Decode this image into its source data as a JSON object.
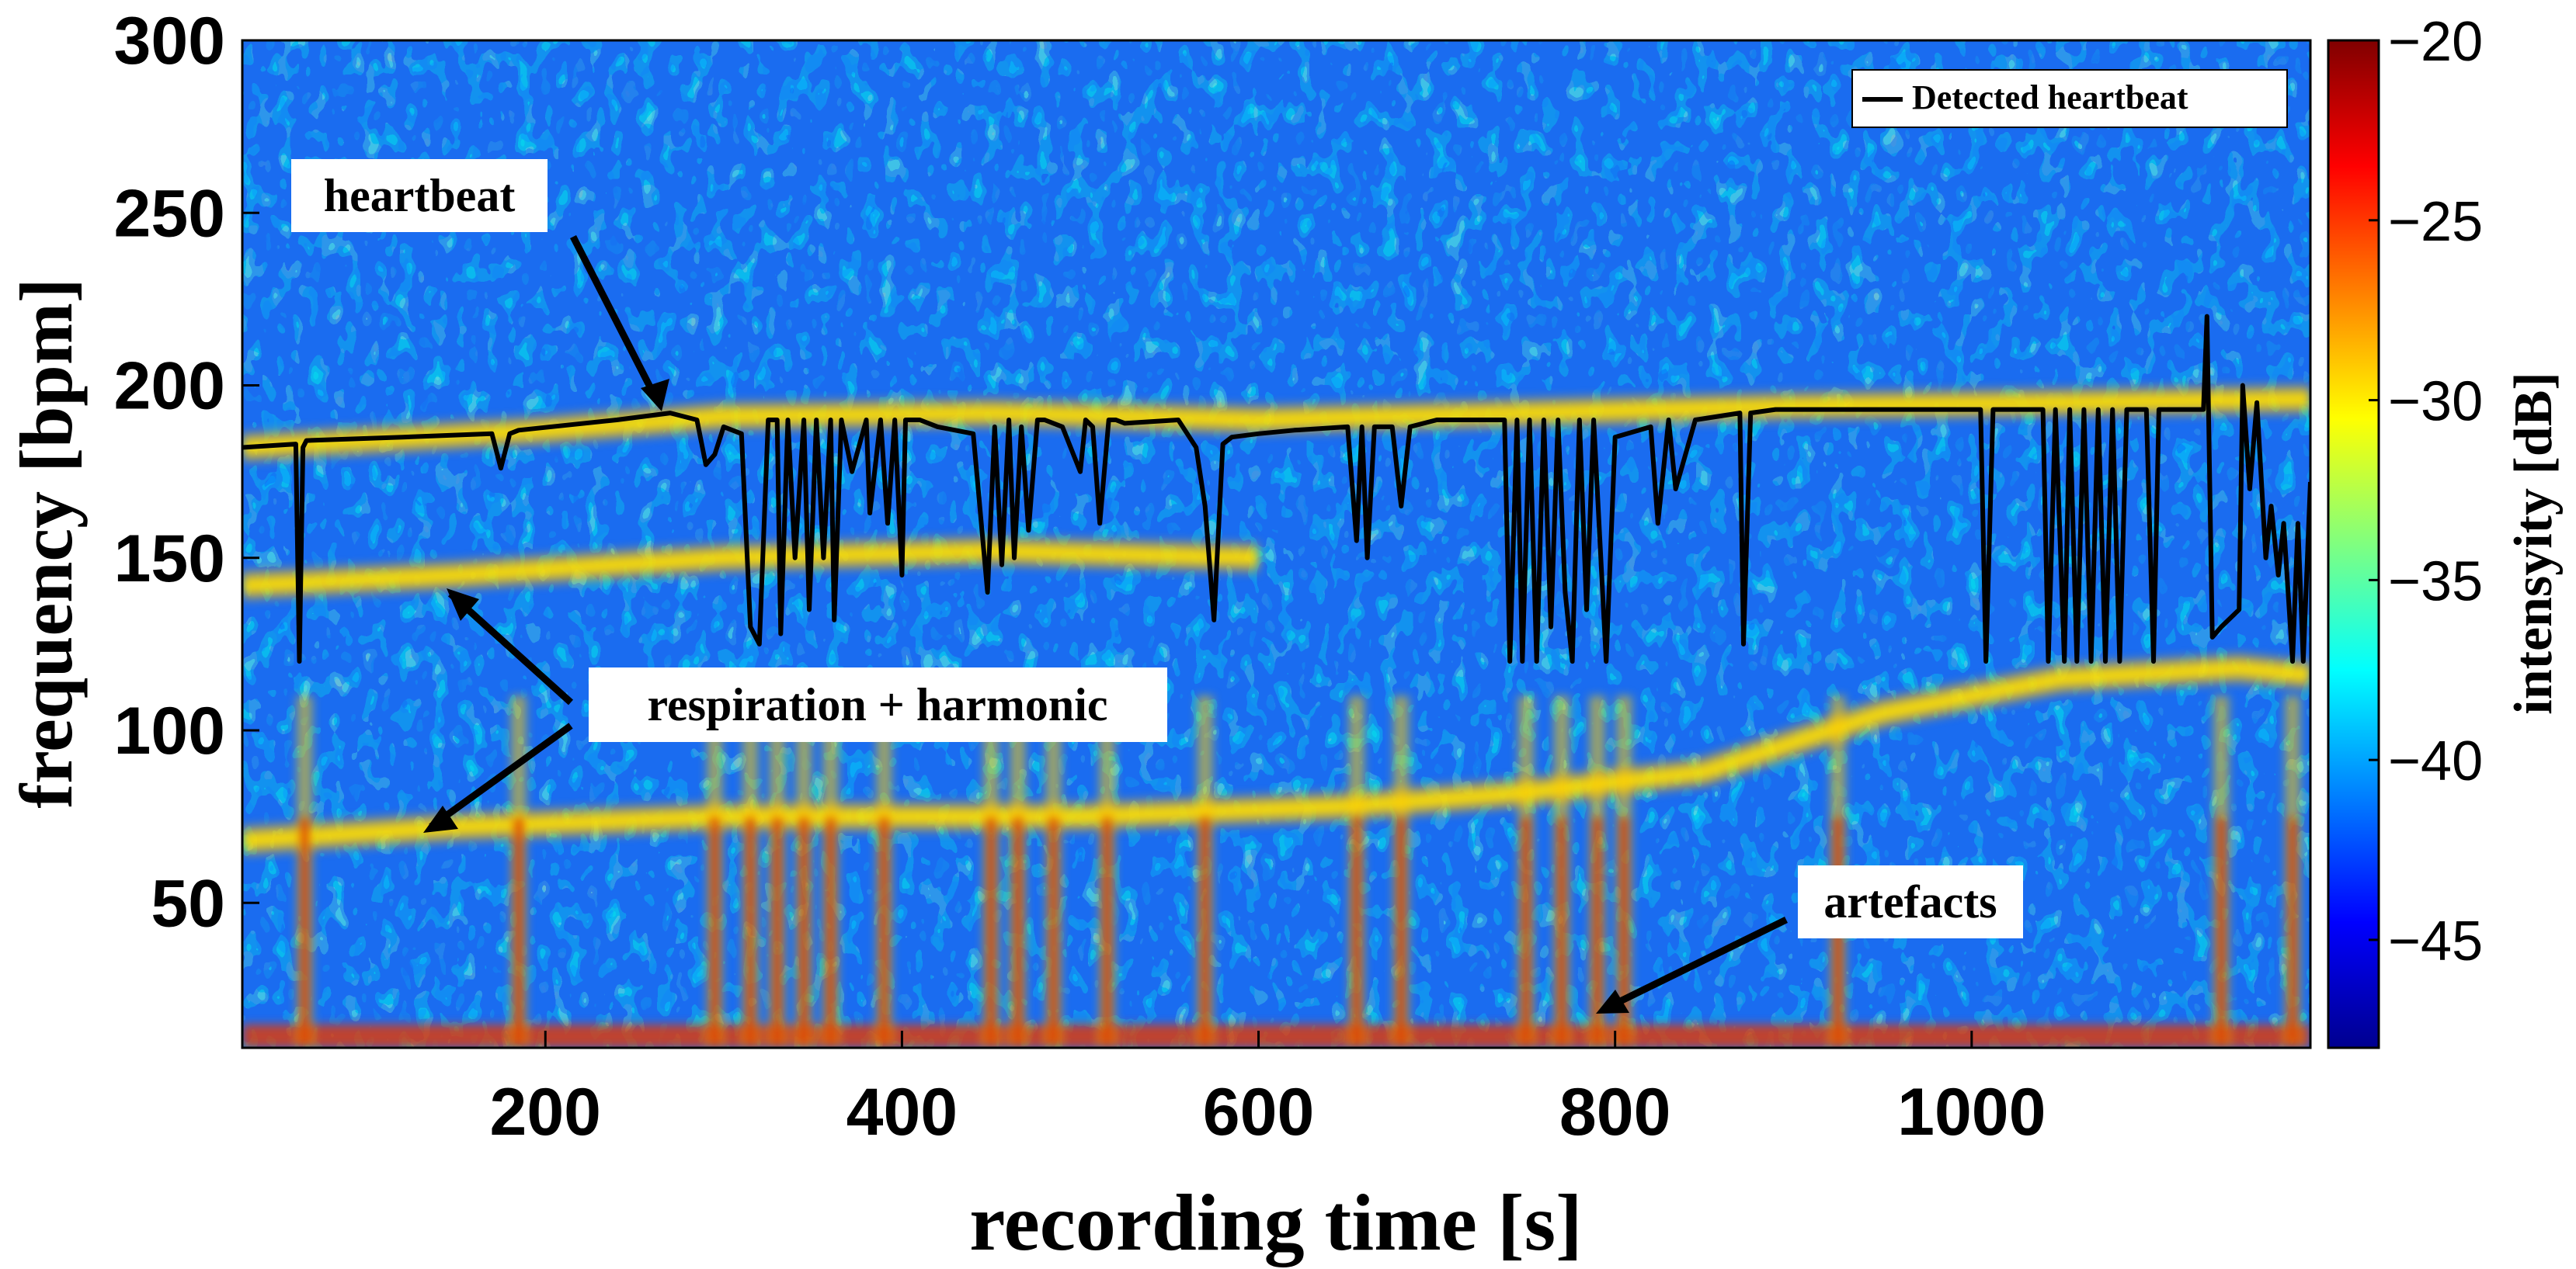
{
  "chart_data": {
    "type": "heatmap",
    "title": "",
    "xlabel": "recording time [s]",
    "ylabel": "frequency [bpm]",
    "xlim": [
      30,
      1190
    ],
    "ylim": [
      8,
      300
    ],
    "xticks": [
      200,
      400,
      600,
      800,
      1000
    ],
    "yticks": [
      50,
      100,
      150,
      200,
      250,
      300
    ],
    "colorbar": {
      "label": "intensyity [dB]",
      "range": [
        -48,
        -20
      ],
      "ticks": [
        -20,
        -25,
        -30,
        -35,
        -40,
        -45
      ],
      "tick_labels": [
        "−20",
        "−25",
        "−30",
        "−35",
        "−40",
        "−45"
      ],
      "colormap": "jet"
    },
    "legend": {
      "placement": "top-right",
      "entries": [
        {
          "label": "Detected heartbeat",
          "color": "#000000"
        }
      ]
    },
    "annotations": [
      {
        "text": "heartbeat",
        "points_to": {
          "x": 265,
          "y": 193
        }
      },
      {
        "text": "respiration + harmonic",
        "points_to": [
          {
            "x": 150,
            "y": 142
          },
          {
            "x": 130,
            "y": 68
          }
        ]
      },
      {
        "text": "artefacts",
        "points_to": {
          "x": 785,
          "y": 10
        }
      }
    ],
    "bands": [
      {
        "name": "heartbeat band",
        "x": [
          30,
          200,
          300,
          450,
          600,
          750,
          900,
          1050,
          1190
        ],
        "y": [
          182,
          187,
          191,
          192,
          190,
          192,
          194,
          195,
          196
        ]
      },
      {
        "name": "respiration band",
        "x": [
          30,
          150,
          300,
          500,
          650,
          750,
          850,
          950,
          1050,
          1150,
          1190
        ],
        "y": [
          68,
          72,
          75,
          75,
          78,
          82,
          88,
          105,
          115,
          118,
          116
        ]
      },
      {
        "name": "harmonic band",
        "x": [
          30,
          150,
          300,
          450,
          600
        ],
        "y": [
          142,
          145,
          150,
          152,
          150
        ]
      }
    ],
    "artefact_times": [
      65,
      185,
      295,
      315,
      330,
      345,
      360,
      390,
      450,
      465,
      485,
      515,
      570,
      655,
      680,
      750,
      770,
      790,
      805,
      925,
      1140,
      1180
    ],
    "series": [
      {
        "name": "Detected heartbeat",
        "color": "#000000",
        "x": [
          30,
          60,
          62,
          64,
          66,
          120,
          170,
          175,
          180,
          185,
          240,
          270,
          285,
          290,
          295,
          300,
          310,
          315,
          320,
          325,
          330,
          332,
          336,
          340,
          345,
          348,
          352,
          356,
          360,
          362,
          366,
          372,
          380,
          382,
          388,
          392,
          396,
          400,
          402,
          410,
          420,
          440,
          448,
          452,
          456,
          460,
          463,
          467,
          471,
          476,
          480,
          490,
          500,
          503,
          507,
          511,
          516,
          520,
          525,
          555,
          565,
          570,
          575,
          580,
          585,
          600,
          620,
          650,
          655,
          658,
          661,
          665,
          675,
          680,
          685,
          700,
          738,
          741,
          745,
          748,
          752,
          756,
          760,
          764,
          768,
          772,
          776,
          780,
          784,
          788,
          795,
          800,
          820,
          824,
          830,
          834,
          845,
          870,
          872,
          876,
          890,
          920,
          1005,
          1008,
          1012,
          1040,
          1043,
          1047,
          1052,
          1055,
          1059,
          1063,
          1067,
          1071,
          1075,
          1079,
          1083,
          1087,
          1095,
          1098,
          1102,
          1105,
          1110,
          1130,
          1132,
          1135,
          1140,
          1150,
          1152,
          1156,
          1160,
          1165,
          1168,
          1172,
          1175,
          1180,
          1183,
          1186,
          1190
        ],
        "y": [
          182,
          183,
          120,
          182,
          184,
          185,
          186,
          176,
          186,
          187,
          190,
          192,
          190,
          177,
          180,
          188,
          186,
          130,
          125,
          190,
          190,
          128,
          190,
          150,
          190,
          135,
          190,
          150,
          190,
          132,
          190,
          175,
          190,
          163,
          190,
          160,
          190,
          145,
          190,
          190,
          188,
          186,
          140,
          188,
          148,
          190,
          150,
          188,
          158,
          190,
          190,
          188,
          175,
          190,
          188,
          160,
          190,
          190,
          189,
          190,
          182,
          165,
          132,
          183,
          185,
          186,
          187,
          188,
          155,
          188,
          150,
          188,
          188,
          165,
          188,
          190,
          190,
          120,
          190,
          120,
          190,
          120,
          190,
          130,
          190,
          140,
          120,
          190,
          135,
          190,
          120,
          185,
          188,
          160,
          190,
          170,
          190,
          192,
          125,
          192,
          193,
          193,
          193,
          120,
          193,
          193,
          120,
          193,
          120,
          193,
          120,
          193,
          120,
          193,
          120,
          193,
          120,
          193,
          193,
          193,
          120,
          193,
          193,
          193,
          220,
          127,
          130,
          135,
          200,
          170,
          195,
          150,
          165,
          145,
          160,
          120,
          160,
          120,
          172
        ]
      }
    ]
  }
}
